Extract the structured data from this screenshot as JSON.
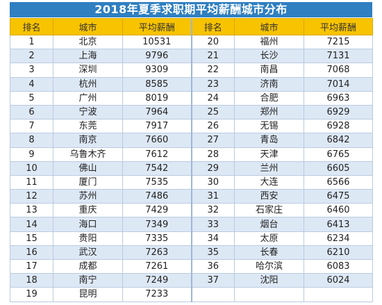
{
  "title": "2018年夏季求职期平均薪酬城市分布",
  "headers": {
    "left": [
      "排名",
      "城市",
      "平均薪酬"
    ],
    "right": [
      "排名",
      "城市",
      "平均薪酬"
    ]
  },
  "rows": [
    {
      "l": [
        "1",
        "北京",
        "10531"
      ],
      "r": [
        "20",
        "福州",
        "7215"
      ]
    },
    {
      "l": [
        "2",
        "上海",
        "9796"
      ],
      "r": [
        "21",
        "长沙",
        "7131"
      ]
    },
    {
      "l": [
        "3",
        "深圳",
        "9309"
      ],
      "r": [
        "22",
        "南昌",
        "7068"
      ]
    },
    {
      "l": [
        "4",
        "杭州",
        "8585"
      ],
      "r": [
        "23",
        "济南",
        "7014"
      ]
    },
    {
      "l": [
        "5",
        "广州",
        "8019"
      ],
      "r": [
        "24",
        "合肥",
        "6963"
      ]
    },
    {
      "l": [
        "6",
        "宁波",
        "7964"
      ],
      "r": [
        "25",
        "郑州",
        "6929"
      ]
    },
    {
      "l": [
        "7",
        "东莞",
        "7917"
      ],
      "r": [
        "26",
        "无锡",
        "6928"
      ]
    },
    {
      "l": [
        "8",
        "南京",
        "7660"
      ],
      "r": [
        "27",
        "青岛",
        "6842"
      ]
    },
    {
      "l": [
        "9",
        "乌鲁木齐",
        "7612"
      ],
      "r": [
        "28",
        "天津",
        "6765"
      ]
    },
    {
      "l": [
        "10",
        "佛山",
        "7542"
      ],
      "r": [
        "29",
        "兰州",
        "6605"
      ]
    },
    {
      "l": [
        "11",
        "厦门",
        "7535"
      ],
      "r": [
        "30",
        "大连",
        "6566"
      ]
    },
    {
      "l": [
        "12",
        "苏州",
        "7486"
      ],
      "r": [
        "31",
        "西安",
        "6475"
      ]
    },
    {
      "l": [
        "13",
        "重庆",
        "7429"
      ],
      "r": [
        "32",
        "石家庄",
        "6460"
      ]
    },
    {
      "l": [
        "14",
        "海口",
        "7349"
      ],
      "r": [
        "33",
        "烟台",
        "6413"
      ]
    },
    {
      "l": [
        "15",
        "贵阳",
        "7335"
      ],
      "r": [
        "34",
        "太原",
        "6234"
      ]
    },
    {
      "l": [
        "16",
        "武汉",
        "7263"
      ],
      "r": [
        "35",
        "长春",
        "6210"
      ]
    },
    {
      "l": [
        "17",
        "成都",
        "7261"
      ],
      "r": [
        "36",
        "哈尔滨",
        "6083"
      ]
    },
    {
      "l": [
        "18",
        "南宁",
        "7249"
      ],
      "r": [
        "37",
        "沈阳",
        "6024"
      ]
    },
    {
      "l": [
        "19",
        "昆明",
        "7233"
      ],
      "r": [
        "",
        "",
        ""
      ]
    }
  ]
}
